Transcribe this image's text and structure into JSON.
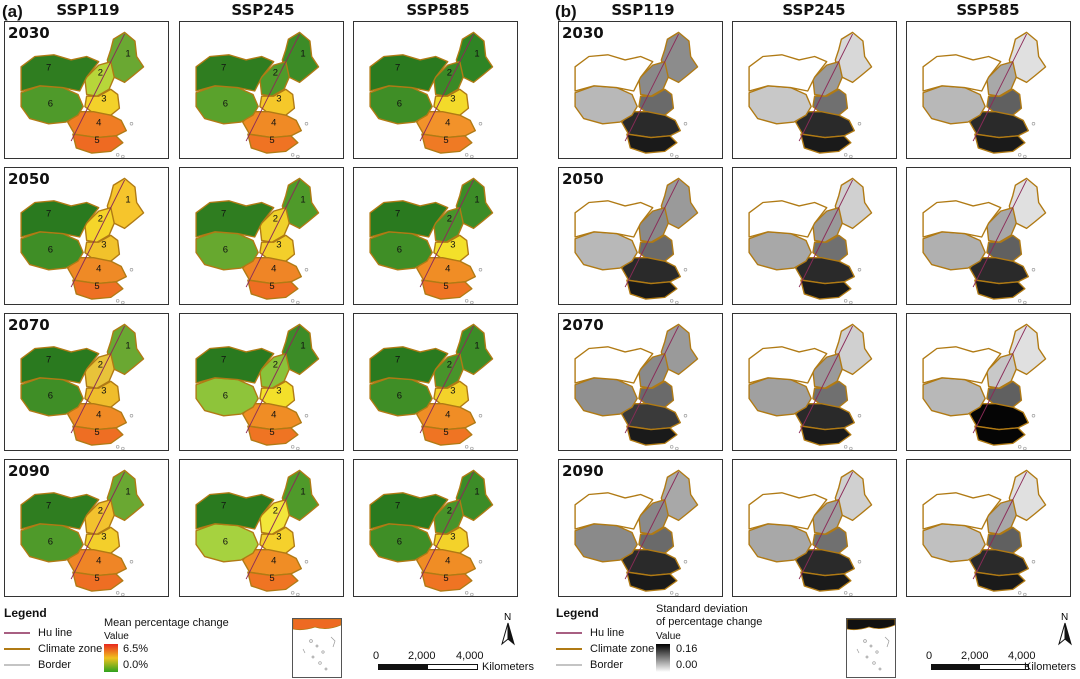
{
  "panel_a": {
    "label": "(a)",
    "columns": [
      "SSP119",
      "SSP245",
      "SSP585"
    ],
    "years": [
      "2030",
      "2050",
      "2070",
      "2090"
    ],
    "legend": {
      "title": "Legend",
      "items": [
        "Hu line",
        "Climate zone",
        "Border"
      ],
      "ramp_title": "Mean percentage change",
      "ramp_sub": "Value",
      "ramp_max": "6.5%",
      "ramp_min": "0.0%"
    },
    "zone_colors": [
      [
        "#6aa832",
        "#b7d63a",
        "#f3d12a",
        "#f07d24",
        "#ee6a22",
        "#4f9a2a",
        "#2f7d20"
      ],
      [
        "#3c8c27",
        "#4f9a2a",
        "#f5c82a",
        "#f08a25",
        "#ef7323",
        "#5aa22c",
        "#2f7d20"
      ],
      [
        "#2f8424",
        "#3a8a26",
        "#f3da2a",
        "#f2922a",
        "#ef7a24",
        "#3f8e26",
        "#2a7a1f"
      ],
      [
        "#f6c52c",
        "#f5d52a",
        "#f1c22b",
        "#ef8a26",
        "#ee7024",
        "#3f8e26",
        "#2a7a1f"
      ],
      [
        "#4f9a2a",
        "#f0d12a",
        "#f3cf2b",
        "#ef8526",
        "#ee6e23",
        "#67a82f",
        "#2f7d20"
      ],
      [
        "#3c8c27",
        "#48942a",
        "#f3e02a",
        "#f08d25",
        "#ef7423",
        "#3f8e26",
        "#2a7a1f"
      ],
      [
        "#6aa832",
        "#e8c33a",
        "#efbd2c",
        "#f08a25",
        "#ee6e23",
        "#3f8e26",
        "#2a7a1f"
      ],
      [
        "#3c8c27",
        "#8ac23a",
        "#f3e02a",
        "#f08d25",
        "#ef7423",
        "#8ec43a",
        "#2a7a1f"
      ],
      [
        "#3c8c27",
        "#48942a",
        "#f3d22a",
        "#f08d25",
        "#ef7423",
        "#3f8e26",
        "#2a7a1f"
      ],
      [
        "#6aa832",
        "#f2c22e",
        "#f3cf2b",
        "#ef8526",
        "#ee6e23",
        "#4f9a2a",
        "#2f7d20"
      ],
      [
        "#4f9a2a",
        "#f3e63a",
        "#f5d12c",
        "#f08d25",
        "#ef7423",
        "#a6d23f",
        "#2a7a1f"
      ],
      [
        "#3c8c27",
        "#48942a",
        "#f3d22a",
        "#f08d25",
        "#ef7423",
        "#3f8e26",
        "#2a7a1f"
      ]
    ],
    "zone_numbers": [
      "1",
      "2",
      "3",
      "4",
      "5",
      "6",
      "7"
    ]
  },
  "panel_b": {
    "label": "(b)",
    "columns": [
      "SSP119",
      "SSP245",
      "SSP585"
    ],
    "years": [
      "2030",
      "2050",
      "2070",
      "2090"
    ],
    "legend": {
      "title": "Legend",
      "items": [
        "Hu line",
        "Climate zone",
        "Border"
      ],
      "ramp_title_1": "Standard deviation",
      "ramp_title_2": "of percentage change",
      "ramp_sub": "Value",
      "ramp_max": "0.16",
      "ramp_min": "0.00"
    },
    "zone_colors": [
      [
        "#8c8c8c",
        "#8a8a8a",
        "#6a6a6a",
        "#2a2a2a",
        "#1a1a1a",
        "#b8b8b8",
        "#ffffff"
      ],
      [
        "#d8d8d8",
        "#9a9a9a",
        "#707070",
        "#2a2a2a",
        "#1a1a1a",
        "#c8c8c8",
        "#ffffff"
      ],
      [
        "#e0e0e0",
        "#a8a8a8",
        "#606060",
        "#2a2a2a",
        "#1a1a1a",
        "#b8b8b8",
        "#ffffff"
      ],
      [
        "#9a9a9a",
        "#8a8a8a",
        "#6a6a6a",
        "#2a2a2a",
        "#1a1a1a",
        "#b8b8b8",
        "#ffffff"
      ],
      [
        "#d0d0d0",
        "#9a9a9a",
        "#707070",
        "#2a2a2a",
        "#1a1a1a",
        "#a8a8a8",
        "#ffffff"
      ],
      [
        "#e0e0e0",
        "#a8a8a8",
        "#606060",
        "#2a2a2a",
        "#1a1a1a",
        "#b0b0b0",
        "#ffffff"
      ],
      [
        "#9a9a9a",
        "#8a8a8a",
        "#6a6a6a",
        "#3a3a3a",
        "#1a1a1a",
        "#909090",
        "#ffffff"
      ],
      [
        "#d0d0d0",
        "#9a9a9a",
        "#707070",
        "#2a2a2a",
        "#1a1a1a",
        "#a0a0a0",
        "#ffffff"
      ],
      [
        "#e0e0e0",
        "#c8c8c8",
        "#606060",
        "#050505",
        "#050505",
        "#b8b8b8",
        "#ffffff"
      ],
      [
        "#a8a8a8",
        "#8a8a8a",
        "#6a6a6a",
        "#2a2a2a",
        "#1a1a1a",
        "#8a8a8a",
        "#ffffff"
      ],
      [
        "#d0d0d0",
        "#a0a0a0",
        "#707070",
        "#2a2a2a",
        "#1a1a1a",
        "#a8a8a8",
        "#ffffff"
      ],
      [
        "#e0e0e0",
        "#a8a8a8",
        "#606060",
        "#2a2a2a",
        "#1a1a1a",
        "#c0c0c0",
        "#ffffff"
      ]
    ]
  },
  "scale": {
    "ticks": [
      "0",
      "2,000",
      "4,000"
    ],
    "unit": "Kilometers",
    "north": "N"
  },
  "colors": {
    "hu_line": "#8b2a58",
    "climate_zone": "#b07a14",
    "border": "#a0a0a0"
  }
}
